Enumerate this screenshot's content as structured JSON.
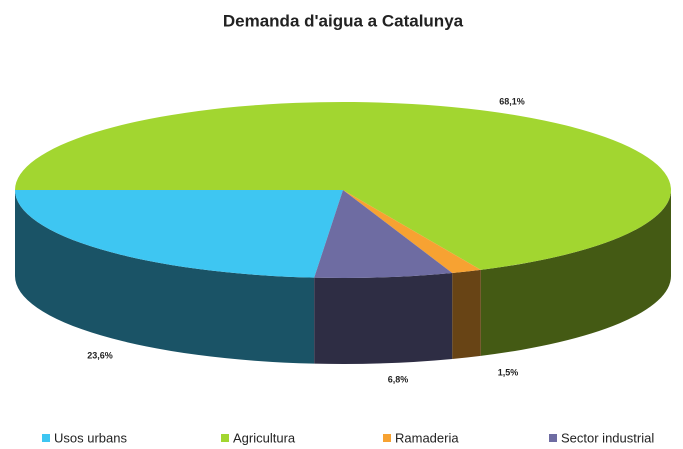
{
  "chart_data": {
    "type": "pie3d",
    "title": "Demanda d'aigua a Catalunya",
    "categories": [
      "Usos urbans",
      "Agricultura",
      "Ramaderia",
      "Sector industrial"
    ],
    "values": [
      23.6,
      68.1,
      1.5,
      6.8
    ],
    "value_labels": [
      "23,6%",
      "68,1%",
      "1,5%",
      "6,8%"
    ],
    "colors": [
      "#3ec6f2",
      "#a2d630",
      "#f7a232",
      "#6e6ca2"
    ],
    "legend": "bottom"
  }
}
